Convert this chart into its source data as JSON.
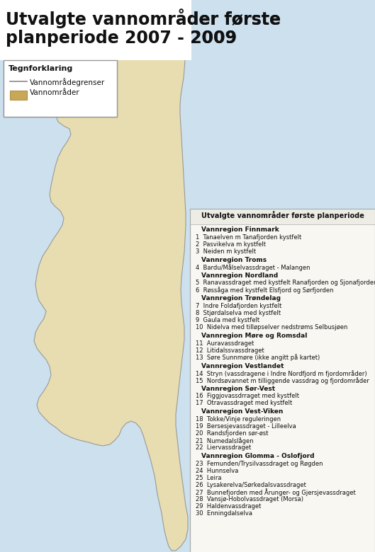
{
  "title_line1": "Utvalgte vannområder første",
  "title_line2": "planperiode 2007 - 2009",
  "legend_title": "Tegnforklaring",
  "legend_line": "Vannområdegrenser",
  "legend_fill": "Vannområder",
  "table_title": "Utvalgte vannområder første planperiode",
  "background_color": "#ffffff",
  "map_bg_color": "#cce0ee",
  "norway_fill": "#e8ddb0",
  "norway_stroke": "#999999",
  "table_border_color": "#aaaaaa",
  "table_bg_color": "#f8f7f2",
  "regions": [
    {
      "name": "Vannregion Finnmark",
      "items": [
        "1  Tanaelven m Tanafjorden kystfelt",
        "2  Pasvikelva m kystfelt",
        "3  Neiden m kystfelt"
      ]
    },
    {
      "name": "Vannregion Troms",
      "items": [
        "4  Bardu/Målselvassdraget - Malangen"
      ]
    },
    {
      "name": "Vannregion Nordland",
      "items": [
        "5  Ranavassdraget med kystfelt Ranafjorden og Sjonafjorden",
        "6  Røssåga med kystfelt Elsfjord og Sørfjorden"
      ]
    },
    {
      "name": "Vannregion Trøndelag",
      "items": [
        "7  Indre Foldafjorden kystfelt",
        "8  Stjørdalselva med kystfelt",
        "9  Gaula med kystfelt",
        "10  Nidelva med tilløpselver nedstrøms Selbusjøen"
      ]
    },
    {
      "name": "Vannregion Møre og Romsdal",
      "items": [
        "11  Auravassdraget",
        "12  Litidalssvassdraget",
        "13  Søre Sunnmøre (ikke angitt på kartet)"
      ]
    },
    {
      "name": "Vannregion Vestlandet",
      "items": [
        "14  Stryn (vassdragene i Indre Nordfjord m fjordområder)",
        "15  Nordsøvannet m tilliggende vassdrag og fjordområder"
      ]
    },
    {
      "name": "Vannregion Sør-Vest",
      "items": [
        "16  Figgjovassdrraget med kystfelt",
        "17  Otravassdraget med kystfelt"
      ]
    },
    {
      "name": "Vannregion Vest-Viken",
      "items": [
        "18  Tokke/Vinje reguleringen",
        "19  Bersesjevassdraget - Lilleelva",
        "20  Randsfjorden sør-øst",
        "21  Numedalslågen",
        "22  Liervassdraget"
      ]
    },
    {
      "name": "Vannregion Glomma - Oslofjord",
      "items": [
        "23  Femunden/Trysilvassdraget og Røgden",
        "24  Hunnselva",
        "25  Leira",
        "26  Lysakerelva/Sørkedalsvassdraget",
        "27  Bunnefjorden med Årunger- og Gjersjevassdraget",
        "28  Vansjø-Hobolvassdraget (Morsa)",
        "29  Haldenvassdraget",
        "30  Enningdalselva"
      ]
    }
  ]
}
